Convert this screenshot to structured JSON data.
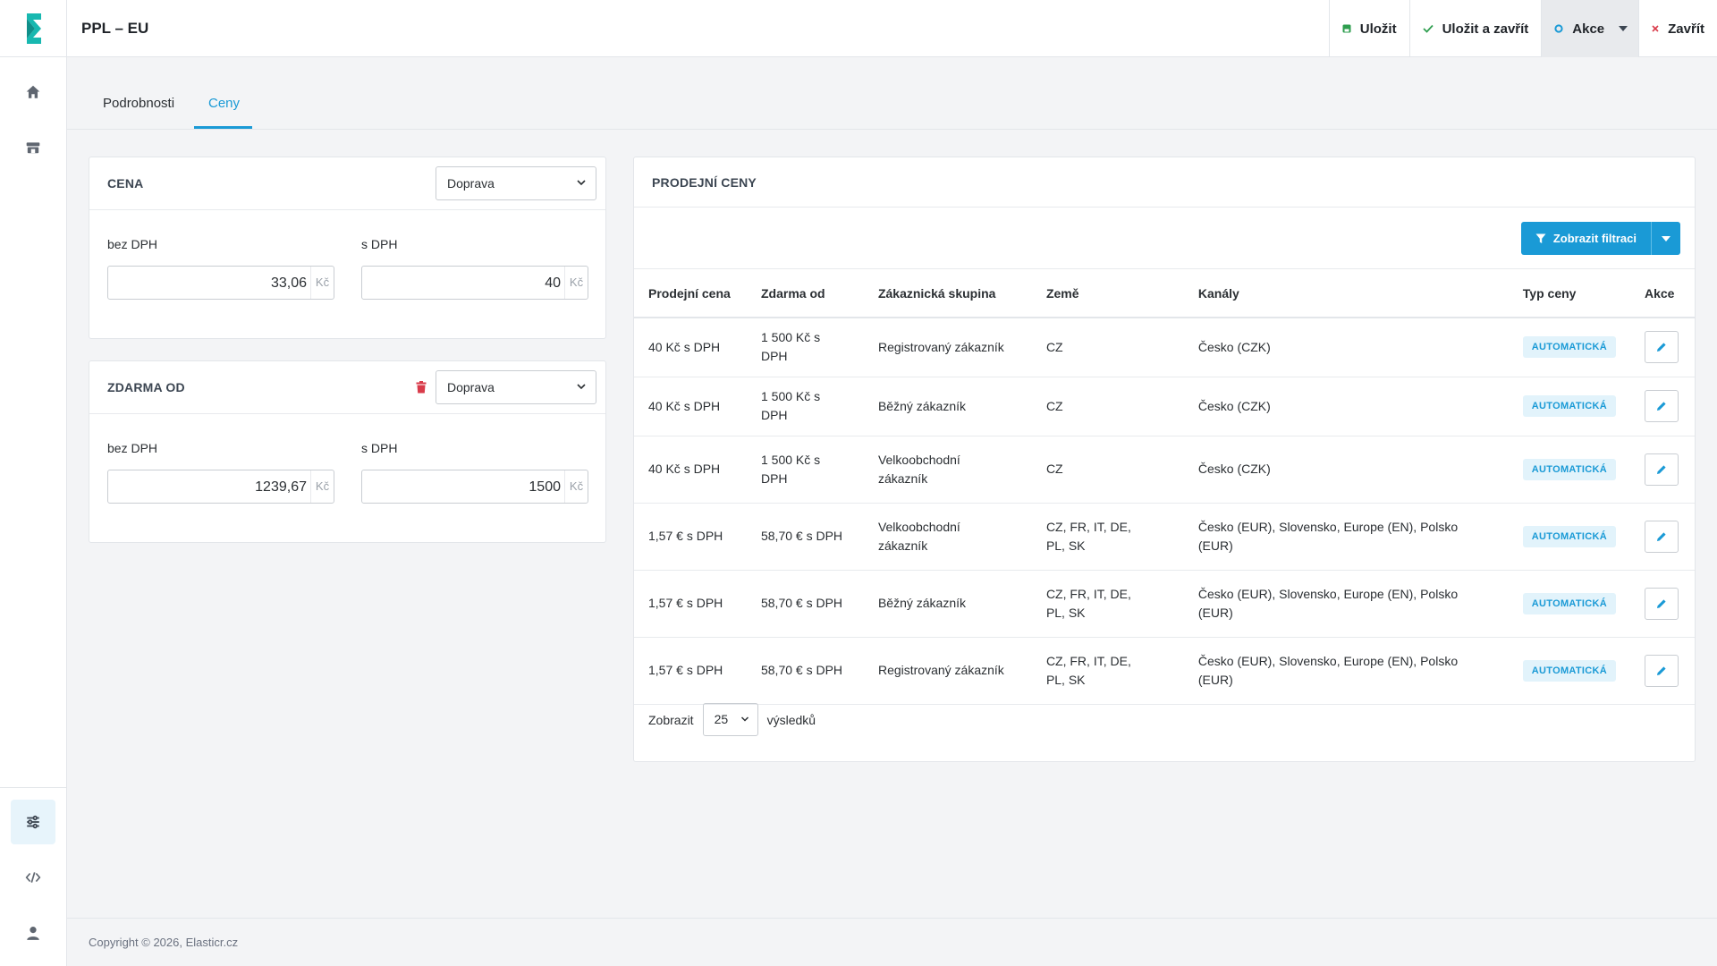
{
  "window": {
    "title": "PPL – EU"
  },
  "colors": {
    "accent": "#1a9ad6",
    "save_green": "#2e9e4f",
    "close_red": "#d93b4a",
    "logo_teal": "#18b8b0"
  },
  "sidebar": {
    "items": [
      {
        "icon": "home-icon"
      },
      {
        "icon": "store-icon"
      },
      {
        "icon": "sliders-icon"
      },
      {
        "icon": "code-icon"
      },
      {
        "icon": "user-icon"
      }
    ]
  },
  "toolbar": {
    "save_label": "Uložit",
    "save_close_label": "Uložit a zavřít",
    "actions_label": "Akce",
    "close_label": "Zavřít"
  },
  "tabs": [
    {
      "label": "Podrobnosti"
    },
    {
      "label": "Ceny",
      "active": true
    }
  ],
  "price_card": {
    "title": "CENA",
    "select_value": "Doprava",
    "without_vat_label": "bez DPH",
    "without_vat_value": "33,06",
    "with_vat_label": "s DPH",
    "with_vat_value": "40",
    "unit": "Kč"
  },
  "free_card": {
    "title": "ZDARMA OD",
    "select_value": "Doprava",
    "without_vat_label": "bez DPH",
    "without_vat_value": "1239,67",
    "with_vat_label": "s DPH",
    "with_vat_value": "1500",
    "unit": "Kč"
  },
  "sales_card": {
    "title": "PRODEJNÍ CENY",
    "filter_label": "Zobrazit filtraci",
    "columns": [
      "Prodejní cena",
      "Zdarma od",
      "Zákaznická skupina",
      "Země",
      "Kanály",
      "Typ ceny",
      "Akce"
    ],
    "rows": [
      {
        "price": "40 Kč s DPH",
        "free": "1 500 Kč s DPH",
        "group": "Registrovaný zákazník",
        "country": "CZ",
        "channels": "Česko (CZK)",
        "type": "AUTOMATICKÁ"
      },
      {
        "price": "40 Kč s DPH",
        "free": "1 500 Kč s DPH",
        "group": "Běžný zákazník",
        "country": "CZ",
        "channels": "Česko (CZK)",
        "type": "AUTOMATICKÁ"
      },
      {
        "price": "40 Kč s DPH",
        "free": "1 500 Kč s DPH",
        "group": "Velkoobchodní zákazník",
        "country": "CZ",
        "channels": "Česko (CZK)",
        "type": "AUTOMATICKÁ"
      },
      {
        "price": "1,57 € s DPH",
        "free": "58,70 € s DPH",
        "group": "Velkoobchodní zákazník",
        "country": "CZ, FR, IT, DE, PL, SK",
        "channels": "Česko (EUR), Slovensko, Europe (EN), Polsko (EUR)",
        "type": "AUTOMATICKÁ"
      },
      {
        "price": "1,57 € s DPH",
        "free": "58,70 € s DPH",
        "group": "Běžný zákazník",
        "country": "CZ, FR, IT, DE, PL, SK",
        "channels": "Česko (EUR), Slovensko, Europe (EN), Polsko (EUR)",
        "type": "AUTOMATICKÁ"
      },
      {
        "price": "1,57 € s DPH",
        "free": "58,70 € s DPH",
        "group": "Registrovaný zákazník",
        "country": "CZ, FR, IT, DE, PL, SK",
        "channels": "Česko (EUR), Slovensko, Europe (EN), Polsko (EUR)",
        "type": "AUTOMATICKÁ"
      }
    ],
    "pager": {
      "show_label": "Zobrazit",
      "page_size": "25",
      "results_label": "výsledků"
    }
  },
  "footer": {
    "copyright": "Copyright © 2026, Elasticr.cz"
  }
}
